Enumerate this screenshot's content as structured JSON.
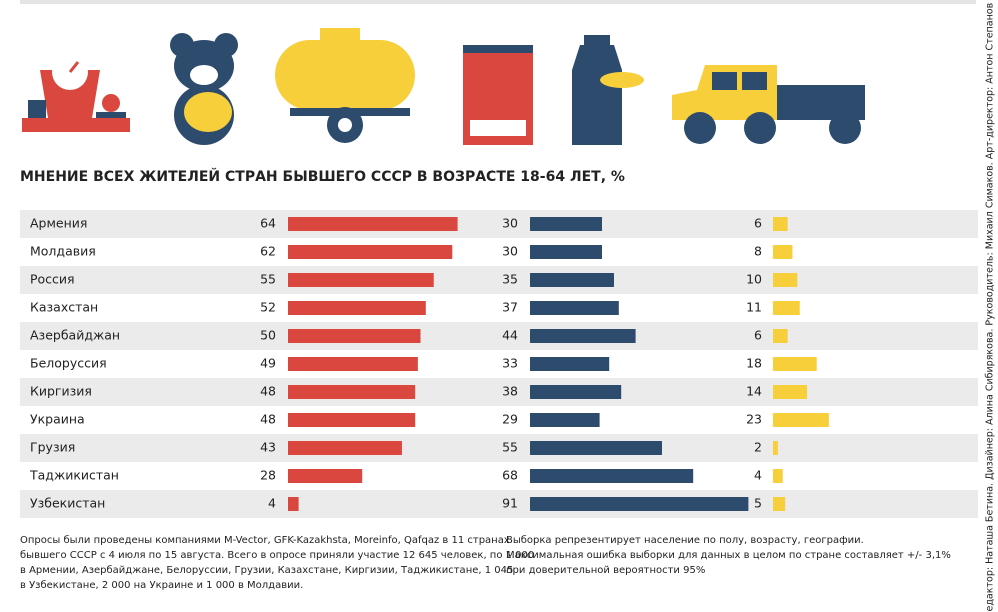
{
  "chart_data": {
    "type": "bar",
    "title": "МНЕНИЕ ВСЕХ ЖИТЕЛЕЙ СТРАН БЫВШЕГО СССР В ВОЗРАСТЕ 18-64 ЛЕТ, %",
    "categories": [
      "Армения",
      "Молдавия",
      "Россия",
      "Казахстан",
      "Азербайджан",
      "Белоруссия",
      "Киргизия",
      "Украина",
      "Грузия",
      "Таджикистан",
      "Узбекистан"
    ],
    "series": [
      {
        "color": "#d9473f",
        "values": [
          64,
          62,
          55,
          52,
          50,
          49,
          48,
          48,
          43,
          28,
          4
        ]
      },
      {
        "color": "#2d4b6d",
        "values": [
          30,
          30,
          35,
          37,
          44,
          33,
          38,
          29,
          55,
          68,
          91
        ]
      },
      {
        "color": "#f7cf3b",
        "values": [
          6,
          8,
          10,
          11,
          6,
          18,
          14,
          23,
          2,
          4,
          5
        ]
      }
    ],
    "notes": {
      "left": [
        "Опросы были проведены компаниями M-Vector, GFK-Kazakhsta, Moreinfo, Qafqaz в 11 странах",
        "бывшего СССР с 4 июля по 15 августа. Всего в опросе приняли участие 12 645 человек, по 1 000",
        "в Армении, Азербайджане, Белоруссии, Грузии, Казахстане, Киргизии, Таджикистане, 1 045",
        "в Узбекистане, 2 000 на Украине и 1 000 в Молдавии."
      ],
      "right": [
        "Выборка репрезентирует население по полу, возрасту, географии.",
        "Максимальная ошибка выборки для данных в целом по стране составляет +/- 3,1%",
        "при доверительной вероятности 95%"
      ]
    },
    "credits": "Редактор: Наташа Бетина. Дизайнер: Алина Сибирякова. Руководитель: Михаил Симаков. Арт-директор: Антон Степанов"
  }
}
